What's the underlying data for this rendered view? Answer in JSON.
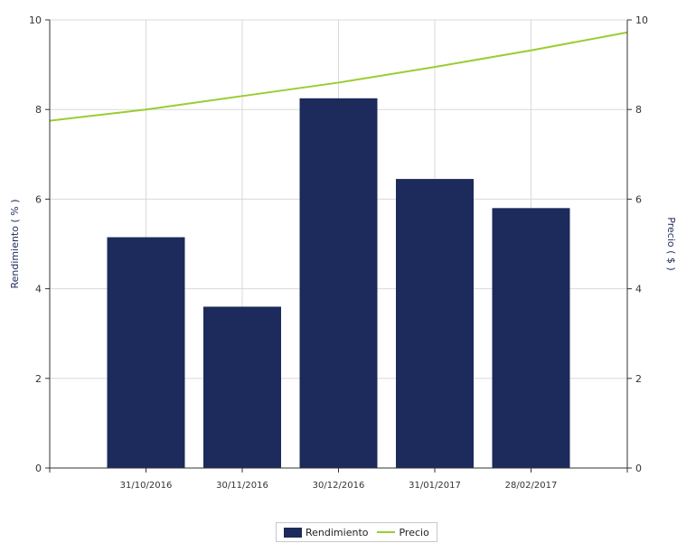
{
  "chart_data": {
    "type": "bar",
    "categories": [
      "31/10/2016",
      "30/11/2016",
      "30/12/2016",
      "31/01/2017",
      "28/02/2017"
    ],
    "series": [
      {
        "name": "Rendimiento",
        "type": "bar",
        "axis": "left",
        "color": "#1c2a5c",
        "values": [
          5.15,
          3.6,
          8.25,
          6.45,
          5.8
        ]
      },
      {
        "name": "Precio",
        "type": "line",
        "axis": "right",
        "color": "#9acd32",
        "x": [
          "start",
          "31/10/2016",
          "30/11/2016",
          "30/12/2016",
          "31/01/2017",
          "28/02/2017",
          "end"
        ],
        "values": [
          7.75,
          8.0,
          8.3,
          8.6,
          8.95,
          9.32,
          9.72
        ]
      }
    ],
    "ylabel": "Rendimiento  ( % )",
    "y2label": "Precio  ( $ )",
    "ylim": [
      0,
      10
    ],
    "y2lim": [
      0,
      10
    ],
    "yticks": [
      0,
      2,
      4,
      6,
      8,
      10
    ],
    "y2ticks": [
      0,
      2,
      4,
      6,
      8,
      10
    ],
    "grid": true,
    "legend": "bottom-center"
  }
}
